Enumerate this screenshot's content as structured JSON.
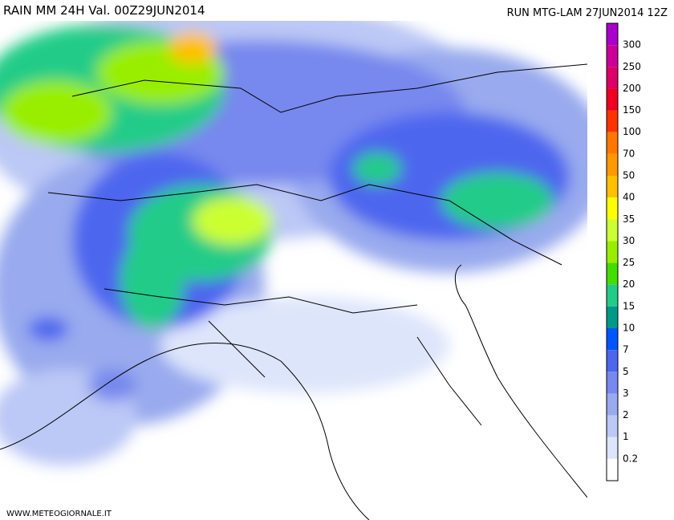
{
  "header": {
    "title": "RAIN  MM  24H  Val.  00Z29JUN2014",
    "run": "RUN  MTG-LAM  27JUN2014  12Z"
  },
  "legend": {
    "labels": [
      "300",
      "250",
      "200",
      "150",
      "100",
      "70",
      "50",
      "40",
      "35",
      "30",
      "25",
      "20",
      "15",
      "10",
      "7",
      "5",
      "3",
      "2",
      "1",
      "0.2"
    ],
    "colors": [
      "#aa00cc",
      "#cc0099",
      "#dd0066",
      "#ee0022",
      "#ff3300",
      "#ff7700",
      "#ff9900",
      "#ffc000",
      "#ffff00",
      "#ccff33",
      "#99ee00",
      "#44dd00",
      "#22cc88",
      "#009988",
      "#0055ff",
      "#4d66ee",
      "#7788ee",
      "#99aaee",
      "#bcc8f5",
      "#dde5fb",
      "#ffffff"
    ]
  },
  "footer": {
    "credit": "WWW.METEOGIORNALE.IT"
  }
}
